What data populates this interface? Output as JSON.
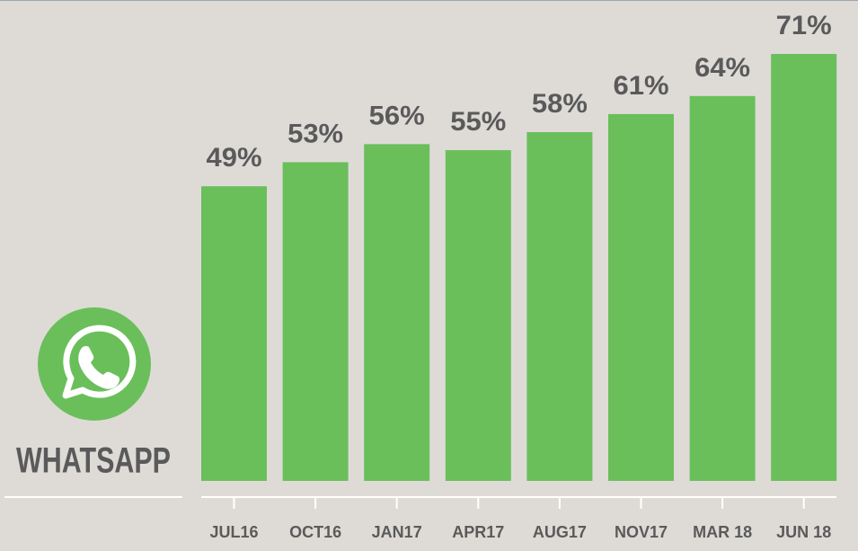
{
  "chart_data": {
    "type": "bar",
    "title": "WHATSAPP",
    "categories": [
      "JUL16",
      "OCT16",
      "JAN17",
      "APR17",
      "AUG17",
      "NOV17",
      "MAR 18",
      "JUN 18"
    ],
    "values": [
      49,
      53,
      56,
      55,
      58,
      61,
      64,
      71
    ],
    "value_labels": [
      "49%",
      "53%",
      "56%",
      "55%",
      "58%",
      "61%",
      "64%",
      "71%"
    ],
    "color": "#6abf5b"
  }
}
